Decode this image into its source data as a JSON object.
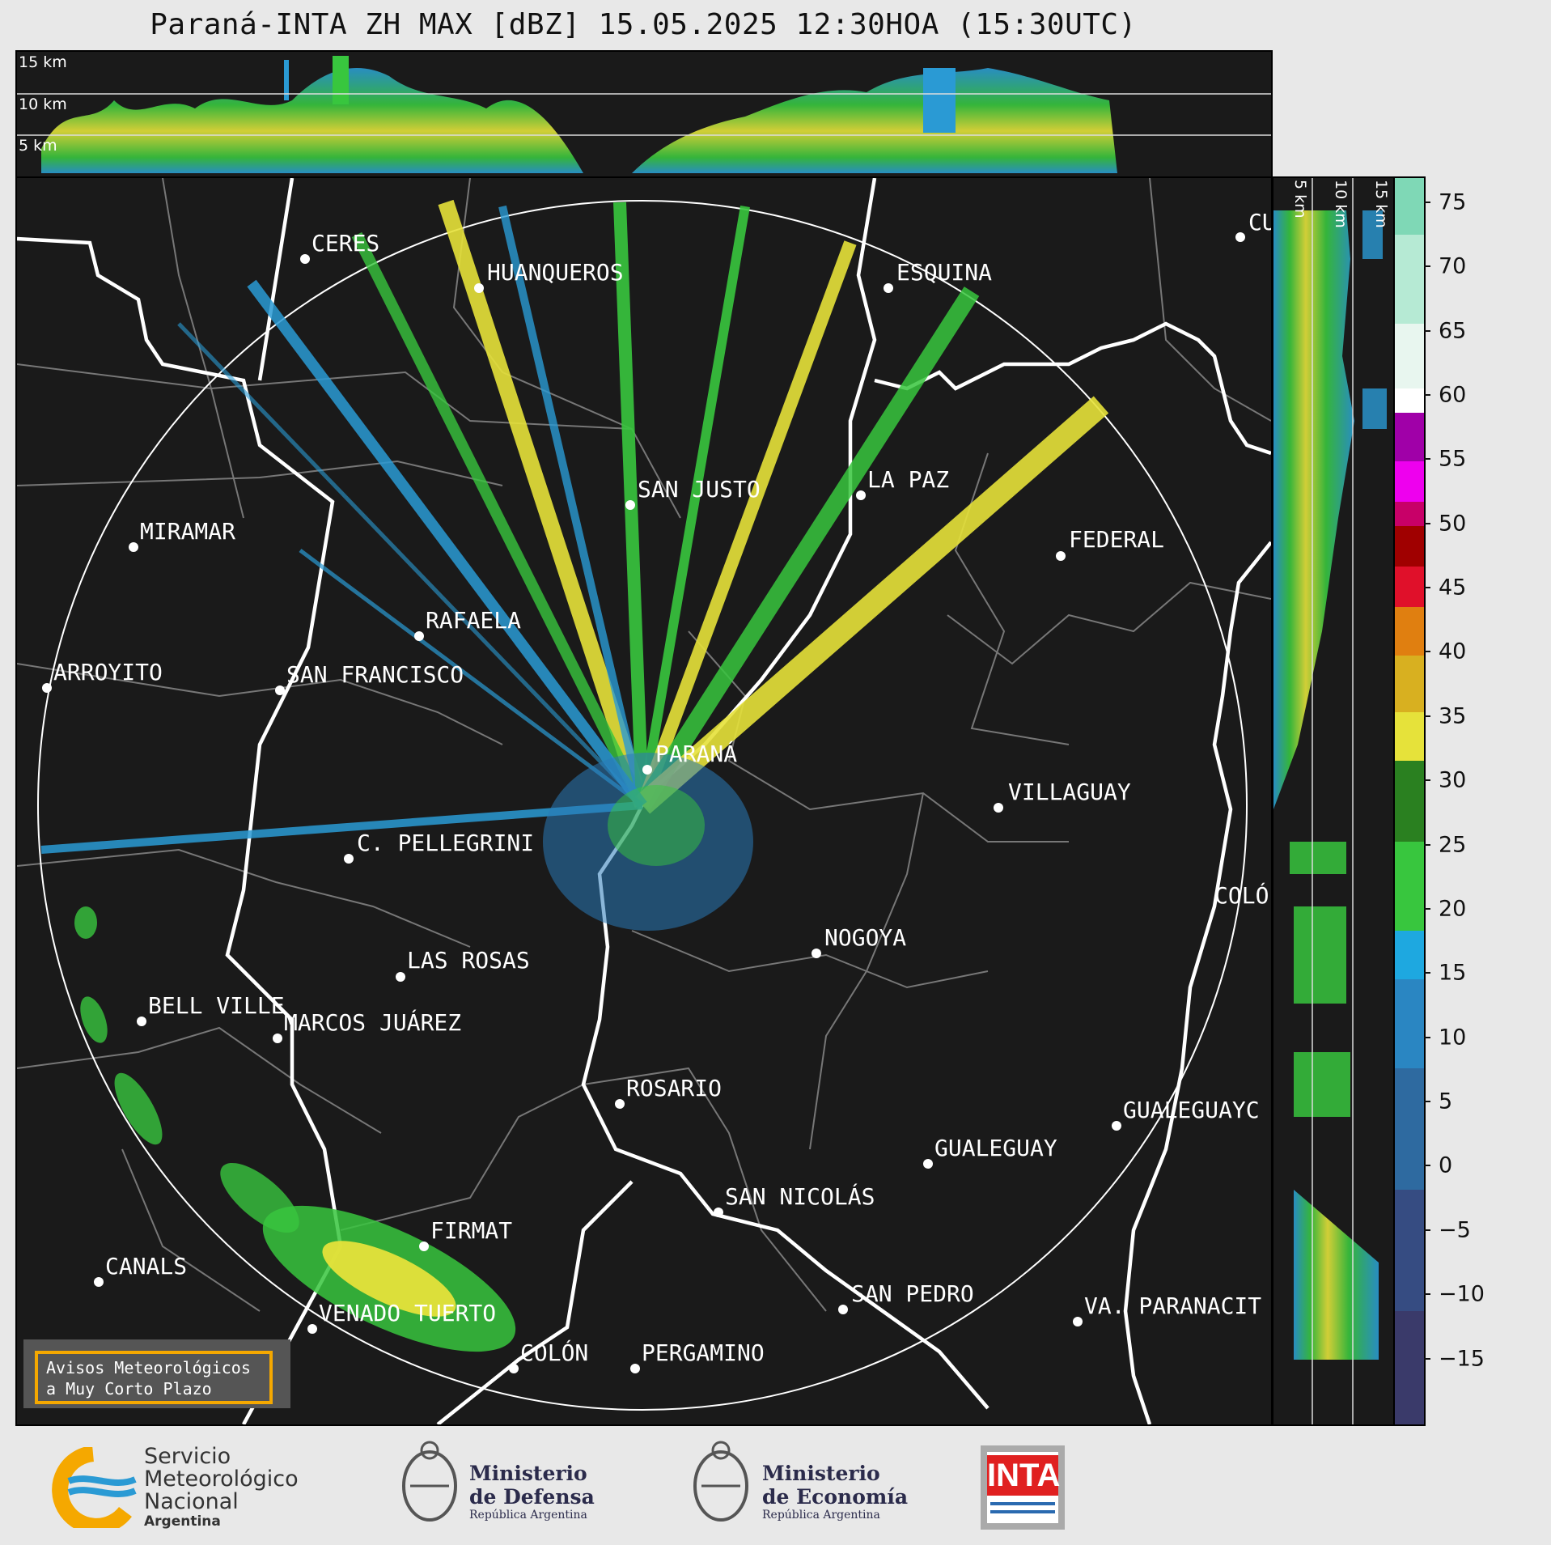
{
  "title": "Paraná-INTA ZH MAX [dBZ] 15.05.2025 12:30HOA (15:30UTC)",
  "altitude_labels": {
    "km15": "15 km",
    "km10": "10 km",
    "km5": "5 km"
  },
  "cities": [
    {
      "name": "CERES"
    },
    {
      "name": "HUANQUEROS"
    },
    {
      "name": "ESQUINA"
    },
    {
      "name": "CU"
    },
    {
      "name": "SAN JUSTO"
    },
    {
      "name": "LA PAZ"
    },
    {
      "name": "MIRAMAR"
    },
    {
      "name": "FEDERAL"
    },
    {
      "name": "RAFAELA"
    },
    {
      "name": "ARROYITO"
    },
    {
      "name": "SAN FRANCISCO"
    },
    {
      "name": "PARANÁ"
    },
    {
      "name": "VILLAGUAY"
    },
    {
      "name": "C. PELLEGRINI"
    },
    {
      "name": "COLÓ"
    },
    {
      "name": "NOGOYA"
    },
    {
      "name": "LAS ROSAS"
    },
    {
      "name": "BELL VILLE"
    },
    {
      "name": "MARCOS JUÁREZ"
    },
    {
      "name": "ROSARIO"
    },
    {
      "name": "GUALEGUAYC"
    },
    {
      "name": "GUALEGUAY"
    },
    {
      "name": "SAN NICOLÁS"
    },
    {
      "name": "FIRMAT"
    },
    {
      "name": "CANALS"
    },
    {
      "name": "SAN PEDRO"
    },
    {
      "name": "VA. PARANACIT"
    },
    {
      "name": "VENADO TUERTO"
    },
    {
      "name": "COLÓN"
    },
    {
      "name": "PERGAMINO"
    }
  ],
  "colorbar": {
    "ticks": [
      "75",
      "70",
      "65",
      "60",
      "55",
      "50",
      "45",
      "40",
      "35",
      "30",
      "25",
      "20",
      "15",
      "10",
      "5",
      "0",
      "−5",
      "−10",
      "−15"
    ],
    "range": [
      -20,
      77
    ]
  },
  "notice": {
    "line1": "Avisos Meteorológicos",
    "line2": "a Muy Corto Plazo"
  },
  "logos": {
    "smn": {
      "l1": "Servicio",
      "l2": "Meteorológico",
      "l3": "Nacional",
      "l4": "Argentina"
    },
    "defensa": {
      "l1": "Ministerio",
      "l2": "de Defensa",
      "l3": "República Argentina"
    },
    "economia": {
      "l1": "Ministerio",
      "l2": "de Economía",
      "l3": "República Argentina"
    },
    "inta": "INTA"
  }
}
